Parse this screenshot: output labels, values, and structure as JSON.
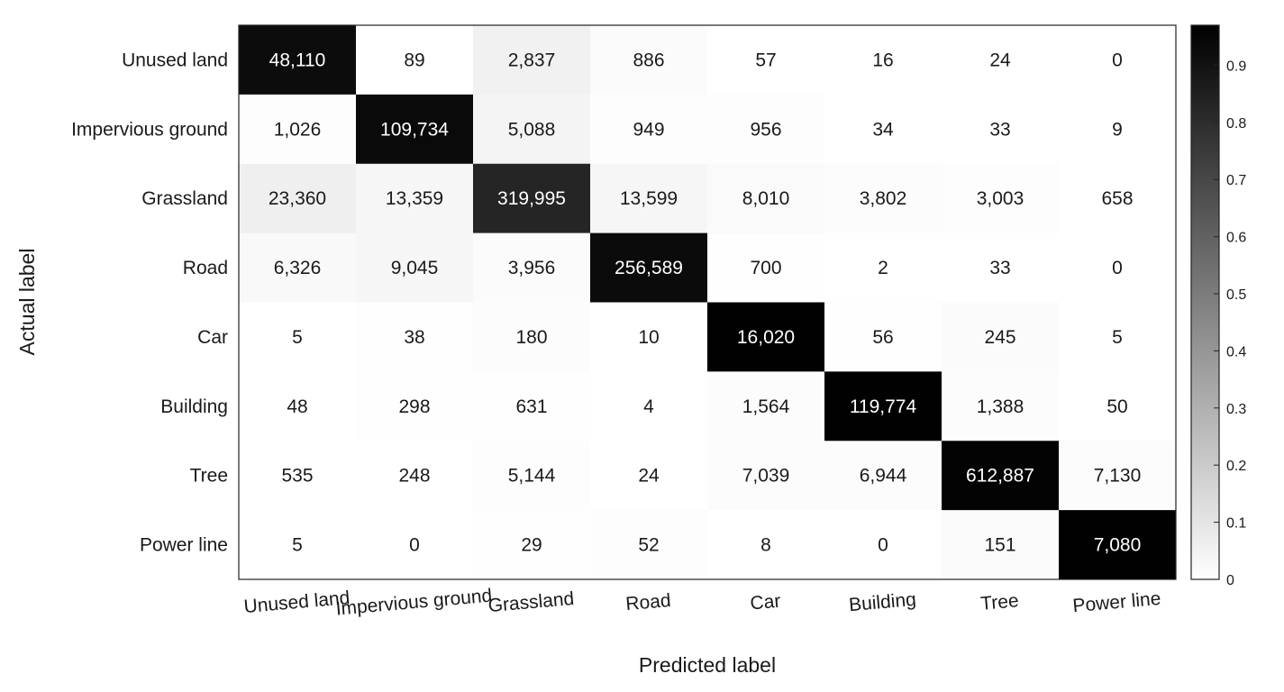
{
  "chart_data": {
    "type": "heatmap",
    "title": "",
    "xlabel": "Predicted label",
    "ylabel": "Actual label",
    "row_labels": [
      "Unused land",
      "Impervious ground",
      "Grassland",
      "Road",
      "Car",
      "Building",
      "Tree",
      "Power line"
    ],
    "col_labels": [
      "Unused land",
      "Impervious ground",
      "Grassland",
      "Road",
      "Car",
      "Building",
      "Tree",
      "Power line"
    ],
    "matrix": [
      [
        48110,
        89,
        2837,
        886,
        57,
        16,
        24,
        0
      ],
      [
        1026,
        109734,
        5088,
        949,
        956,
        34,
        33,
        9
      ],
      [
        23360,
        13359,
        319995,
        13599,
        8010,
        3802,
        3003,
        658
      ],
      [
        6326,
        9045,
        3956,
        256589,
        700,
        2,
        33,
        0
      ],
      [
        5,
        38,
        180,
        10,
        16020,
        56,
        245,
        5
      ],
      [
        48,
        298,
        631,
        4,
        1564,
        119774,
        1388,
        50
      ],
      [
        535,
        248,
        5144,
        24,
        7039,
        6944,
        612887,
        7130
      ],
      [
        5,
        0,
        29,
        52,
        8,
        0,
        151,
        7080
      ]
    ],
    "matrix_labels": [
      [
        "48,110",
        "89",
        "2,837",
        "886",
        "57",
        "16",
        "24",
        "0"
      ],
      [
        "1,026",
        "109,734",
        "5,088",
        "949",
        "956",
        "34",
        "33",
        "9"
      ],
      [
        "23,360",
        "13,359",
        "319,995",
        "13,599",
        "8,010",
        "3,802",
        "3,003",
        "658"
      ],
      [
        "6,326",
        "9,045",
        "3,956",
        "256,589",
        "700",
        "2",
        "33",
        "0"
      ],
      [
        "5",
        "38",
        "180",
        "10",
        "16,020",
        "56",
        "245",
        "5"
      ],
      [
        "48",
        "298",
        "631",
        "4",
        "1,564",
        "119,774",
        "1,388",
        "50"
      ],
      [
        "535",
        "248",
        "5,144",
        "24",
        "7,039",
        "6,944",
        "612,887",
        "7,130"
      ],
      [
        "5",
        "0",
        "29",
        "52",
        "8",
        "0",
        "151",
        "7,080"
      ]
    ],
    "colorbar": {
      "min": 0,
      "max": 0.97,
      "ticks": [
        0,
        0.1,
        0.2,
        0.3,
        0.4,
        0.5,
        0.6,
        0.7,
        0.8,
        0.9
      ],
      "tick_labels": [
        "0",
        "0.1",
        "0.2",
        "0.3",
        "0.4",
        "0.5",
        "0.6",
        "0.7",
        "0.8",
        "0.9"
      ],
      "colormap": "grayscale",
      "low_color": "#ffffff",
      "high_color": "#000000"
    },
    "grid": false
  }
}
